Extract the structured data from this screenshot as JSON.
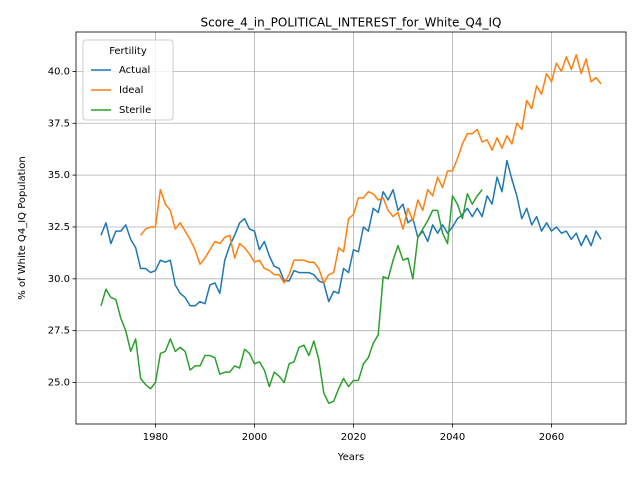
{
  "chart_data": {
    "type": "line",
    "title": "Score_4_in_POLITICAL_INTEREST_for_White_Q4_IQ",
    "x_label": "Years",
    "y_label": "% of White Q4_IQ Population",
    "legend_title": "Fertility",
    "legend_position": "upper left",
    "grid": true,
    "xlim": [
      1963.95,
      2075.05
    ],
    "ylim": [
      23.0,
      41.9
    ],
    "xticks": [
      1980,
      2000,
      2020,
      2040,
      2060
    ],
    "yticks": [
      {
        "value": 25,
        "label": "25.0"
      },
      27.5,
      {
        "value": 30,
        "label": "30.0"
      },
      32.5,
      {
        "value": 35,
        "label": "35.0"
      },
      37.5,
      {
        "value": 40,
        "label": "40.0"
      }
    ],
    "x": [
      1969,
      1970,
      1971,
      1972,
      1973,
      1974,
      1975,
      1976,
      1977,
      1978,
      1979,
      1980,
      1981,
      1982,
      1983,
      1984,
      1985,
      1986,
      1987,
      1988,
      1989,
      1990,
      1991,
      1992,
      1993,
      1994,
      1995,
      1996,
      1997,
      1998,
      1999,
      2000,
      2001,
      2002,
      2003,
      2004,
      2005,
      2006,
      2007,
      2008,
      2009,
      2010,
      2011,
      2012,
      2013,
      2014,
      2015,
      2016,
      2017,
      2018,
      2019,
      2020,
      2021,
      2022,
      2023,
      2024,
      2025,
      2026,
      2027,
      2028,
      2029,
      2030,
      2031,
      2032,
      2033,
      2034,
      2035,
      2036,
      2037,
      2038,
      2039,
      2040,
      2041,
      2042,
      2043,
      2044,
      2045,
      2046,
      2047,
      2048,
      2049,
      2050,
      2051,
      2052,
      2053,
      2054,
      2055,
      2056,
      2057,
      2058,
      2059,
      2060,
      2061,
      2062,
      2063,
      2064,
      2065,
      2066,
      2067,
      2068,
      2069,
      2070
    ],
    "series": [
      {
        "name": "Actual",
        "color": "#1f77b4",
        "values": [
          32.1,
          32.7,
          31.7,
          32.3,
          32.3,
          32.6,
          31.9,
          31.5,
          30.5,
          30.5,
          30.3,
          30.4,
          30.9,
          30.8,
          30.9,
          29.7,
          29.3,
          29.1,
          28.7,
          28.7,
          28.9,
          28.8,
          29.7,
          29.8,
          29.3,
          30.9,
          31.6,
          32.1,
          32.7,
          32.9,
          32.4,
          32.3,
          31.4,
          31.8,
          31.1,
          30.6,
          30.5,
          29.9,
          29.9,
          30.4,
          30.3,
          30.3,
          30.3,
          30.2,
          29.9,
          29.8,
          28.9,
          29.4,
          29.3,
          30.5,
          30.3,
          31.4,
          31.3,
          32.5,
          32.3,
          33.4,
          33.2,
          34.2,
          33.8,
          34.3,
          33.3,
          33.6,
          32.7,
          32.9,
          32.0,
          32.3,
          31.8,
          32.6,
          32.2,
          32.6,
          32.2,
          32.5,
          32.9,
          33.1,
          33.4,
          33.0,
          33.4,
          33.0,
          34.0,
          33.6,
          34.9,
          34.2,
          35.7,
          34.8,
          34.0,
          32.9,
          33.4,
          32.6,
          33.0,
          32.3,
          32.7,
          32.3,
          32.5,
          32.2,
          32.3,
          31.9,
          32.2,
          31.6,
          32.1,
          31.6,
          32.3,
          31.9
        ]
      },
      {
        "name": "Ideal",
        "color": "#ff7f0e",
        "values": [
          null,
          null,
          null,
          null,
          null,
          null,
          null,
          null,
          32.1,
          32.4,
          32.5,
          32.5,
          34.3,
          33.6,
          33.3,
          32.4,
          32.7,
          32.3,
          31.9,
          31.4,
          30.7,
          31.0,
          31.4,
          31.8,
          31.7,
          32.0,
          32.1,
          31.0,
          31.7,
          31.5,
          31.2,
          30.8,
          30.9,
          30.5,
          30.4,
          30.2,
          30.2,
          29.8,
          30.2,
          30.9,
          30.9,
          30.9,
          30.8,
          30.8,
          30.5,
          29.8,
          30.2,
          30.3,
          31.5,
          31.3,
          32.9,
          33.1,
          33.9,
          33.9,
          34.2,
          34.1,
          33.8,
          33.9,
          33.3,
          33.0,
          33.2,
          32.4,
          33.4,
          32.8,
          33.8,
          33.3,
          34.3,
          34.0,
          34.9,
          34.4,
          35.2,
          35.2,
          35.8,
          36.5,
          37.0,
          37.0,
          37.2,
          36.6,
          36.7,
          36.2,
          36.8,
          36.3,
          36.9,
          36.5,
          37.5,
          37.2,
          38.6,
          38.2,
          39.3,
          38.9,
          39.9,
          39.5,
          40.4,
          40.0,
          40.7,
          40.1,
          40.8,
          39.9,
          40.6,
          39.5,
          39.7,
          39.4
        ]
      },
      {
        "name": "Sterile",
        "color": "#2ca02c",
        "values": [
          28.7,
          29.5,
          29.1,
          29.0,
          28.1,
          27.5,
          26.5,
          27.1,
          25.2,
          24.9,
          24.7,
          25.0,
          26.4,
          26.5,
          27.1,
          26.5,
          26.7,
          26.5,
          25.6,
          25.8,
          25.8,
          26.3,
          26.3,
          26.2,
          25.4,
          25.5,
          25.5,
          25.8,
          25.7,
          26.6,
          26.4,
          25.9,
          26.0,
          25.6,
          24.8,
          25.5,
          25.3,
          25.0,
          25.9,
          26.0,
          26.7,
          26.8,
          26.3,
          27.0,
          26.1,
          24.5,
          24.0,
          24.1,
          24.7,
          25.2,
          24.8,
          25.1,
          25.1,
          25.9,
          26.2,
          26.9,
          27.3,
          30.1,
          30.0,
          30.9,
          31.6,
          30.9,
          31.0,
          30.0,
          32.0,
          32.4,
          32.8,
          33.3,
          33.3,
          32.2,
          31.7,
          34.0,
          33.6,
          32.9,
          34.1,
          33.6,
          34.0,
          34.3,
          null,
          null,
          null,
          null,
          null,
          null,
          null,
          null,
          null,
          null,
          null,
          null,
          null,
          null,
          null,
          null,
          null,
          null,
          null,
          null,
          null,
          null,
          null,
          null
        ]
      }
    ]
  }
}
